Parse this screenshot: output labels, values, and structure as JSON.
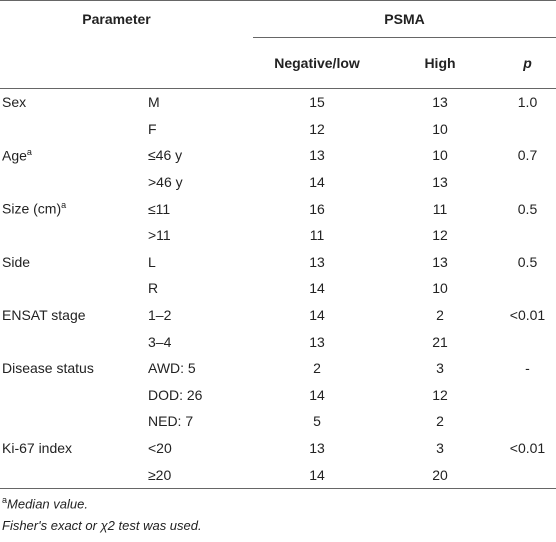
{
  "table": {
    "header": {
      "parameter": "Parameter",
      "group": "PSMA",
      "negative": "Negative/low",
      "high": "High",
      "p": "p"
    },
    "groups": [
      {
        "parameter": "Sex",
        "p": "1.0",
        "rows": [
          {
            "level": "M",
            "negative": 15,
            "high": 13
          },
          {
            "level": "F",
            "negative": 12,
            "high": 10
          }
        ]
      },
      {
        "parameter": "Age",
        "note": "a",
        "p": "0.7",
        "rows": [
          {
            "level": "≤46 y",
            "negative": 13,
            "high": 10
          },
          {
            "level": ">46 y",
            "negative": 14,
            "high": 13
          }
        ]
      },
      {
        "parameter": "Size (cm)",
        "note": "a",
        "p": "0.5",
        "rows": [
          {
            "level": "≤11",
            "negative": 16,
            "high": 11
          },
          {
            "level": ">11",
            "negative": 11,
            "high": 12
          }
        ]
      },
      {
        "parameter": "Side",
        "p": "0.5",
        "rows": [
          {
            "level": "L",
            "negative": 13,
            "high": 13
          },
          {
            "level": "R",
            "negative": 14,
            "high": 10
          }
        ]
      },
      {
        "parameter": "ENSAT stage",
        "p": "<0.01",
        "rows": [
          {
            "level": "1–2",
            "negative": 14,
            "high": 2
          },
          {
            "level": "3–4",
            "negative": 13,
            "high": 21
          }
        ]
      },
      {
        "parameter": "Disease status",
        "p": "-",
        "rows": [
          {
            "level": "AWD: 5",
            "negative": 2,
            "high": 3
          },
          {
            "level": "DOD: 26",
            "negative": 14,
            "high": 12
          },
          {
            "level": "NED: 7",
            "negative": 5,
            "high": 2
          }
        ]
      },
      {
        "parameter": "Ki-67 index",
        "p": "<0.01",
        "rows": [
          {
            "level": "<20",
            "negative": 13,
            "high": 3
          },
          {
            "level": "≥20",
            "negative": 14,
            "high": 20
          }
        ]
      }
    ],
    "footnotes": [
      {
        "mark": "a",
        "text": "Median value."
      },
      {
        "text": "Fisher's exact or χ2 test was used."
      }
    ]
  }
}
